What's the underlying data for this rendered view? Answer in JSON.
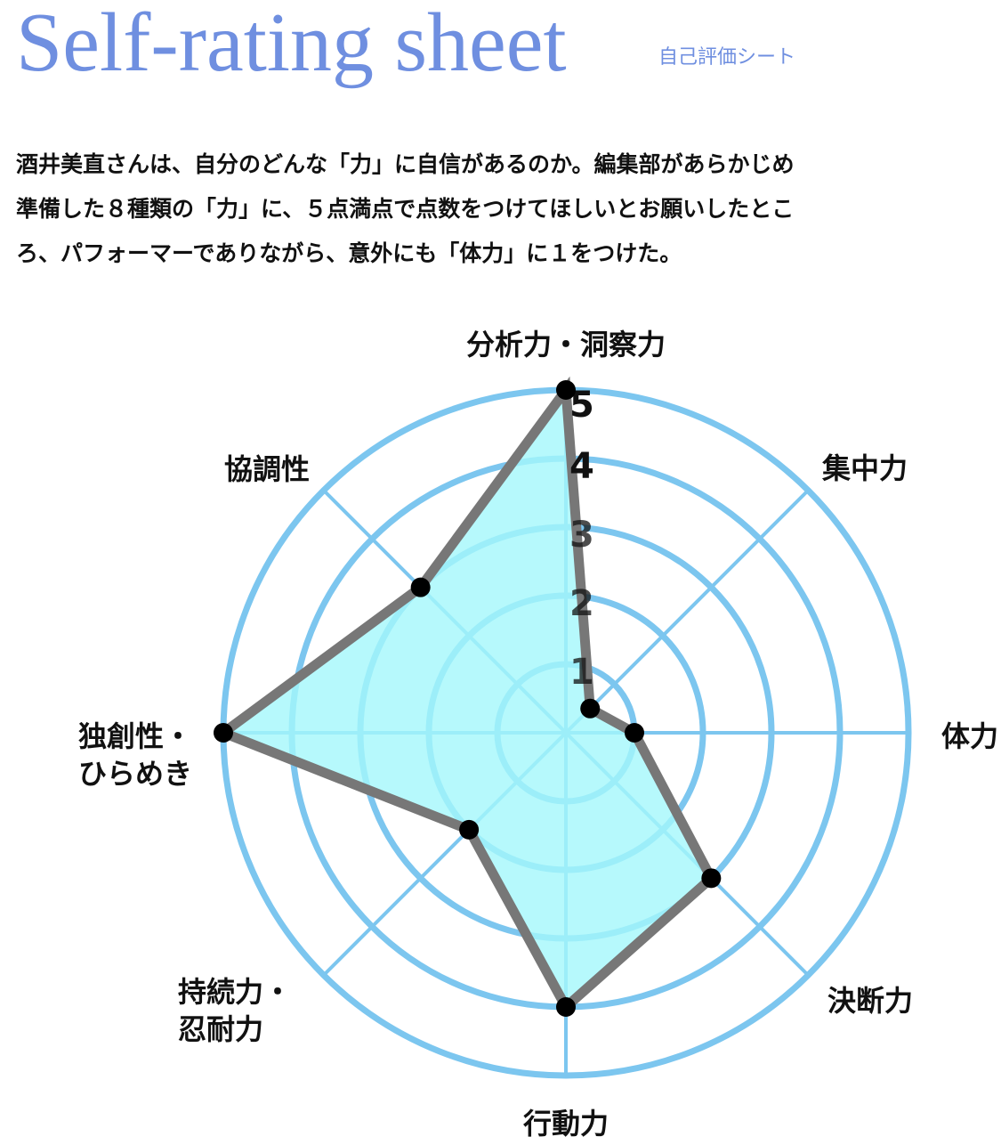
{
  "header": {
    "title_en": "Self-rating sheet",
    "title_ja": "自己評価シート"
  },
  "intro": {
    "lines": [
      "酒井美直さんは、自分のどんな「力」に自信があるのか。編集部があらかじめ",
      "準備した８種類の「力」に、５点満点で点数をつけてほしいとお願いしたとこ",
      "ろ、パフォーマーでありながら、意外にも「体力」に１をつけた。"
    ]
  },
  "chart_data": {
    "type": "radar",
    "max": 5,
    "ticks": [
      "1",
      "2",
      "3",
      "4",
      "5"
    ],
    "axes": [
      {
        "label": [
          "分析力・洞察力"
        ],
        "value": 5
      },
      {
        "label": [
          "集中力"
        ],
        "value": 0.5
      },
      {
        "label": [
          "体力"
        ],
        "value": 1
      },
      {
        "label": [
          "決断力"
        ],
        "value": 3
      },
      {
        "label": [
          "行動力"
        ],
        "value": 4
      },
      {
        "label": [
          "持続力・",
          "忍耐力"
        ],
        "value": 2
      },
      {
        "label": [
          "独創性・",
          "ひらめき"
        ],
        "value": 5
      },
      {
        "label": [
          "協調性"
        ],
        "value": 3
      }
    ],
    "colors": {
      "grid": "#7cc6ef",
      "fill": "#a4f7fb",
      "outline": "#777777",
      "point": "#000000"
    }
  }
}
